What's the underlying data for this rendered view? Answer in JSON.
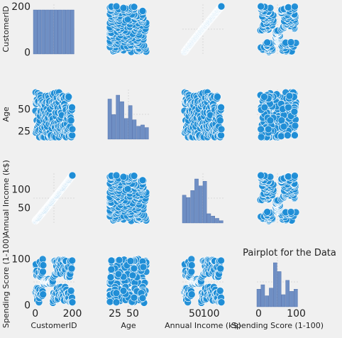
{
  "chart_data": {
    "type": "scatter",
    "kind": "pairplot",
    "title": "Pairplot for the Data",
    "variables": [
      "CustomerID",
      "Age",
      "Annual Income (k$)",
      "Spending Score (1-100)"
    ],
    "ranges": {
      "CustomerID": [
        1,
        200
      ],
      "Age": [
        18,
        70
      ],
      "Annual Income (k$)": [
        15,
        137
      ],
      "Spending Score (1-100)": [
        1,
        99
      ]
    },
    "ticks": {
      "CustomerID": [
        0,
        200
      ],
      "Age": [
        25,
        50
      ],
      "Annual Income (k$)": [
        50,
        100
      ],
      "Spending Score (1-100)": [
        0,
        100
      ]
    },
    "histograms": {
      "CustomerID": [
        20,
        20,
        20,
        20,
        20,
        20,
        20,
        20,
        20,
        20
      ],
      "Age": [
        31,
        19,
        34,
        29,
        16,
        26,
        15,
        10,
        11,
        9
      ],
      "Annual Income (k$)": [
        24,
        22,
        28,
        38,
        32,
        36,
        8,
        6,
        4,
        2
      ],
      "Spending Score (1-100)": [
        16,
        20,
        10,
        17,
        40,
        32,
        11,
        24,
        14,
        16
      ]
    },
    "grid": true,
    "marker_color": "#1f8dd6",
    "bar_color": "#6f8fc4"
  }
}
